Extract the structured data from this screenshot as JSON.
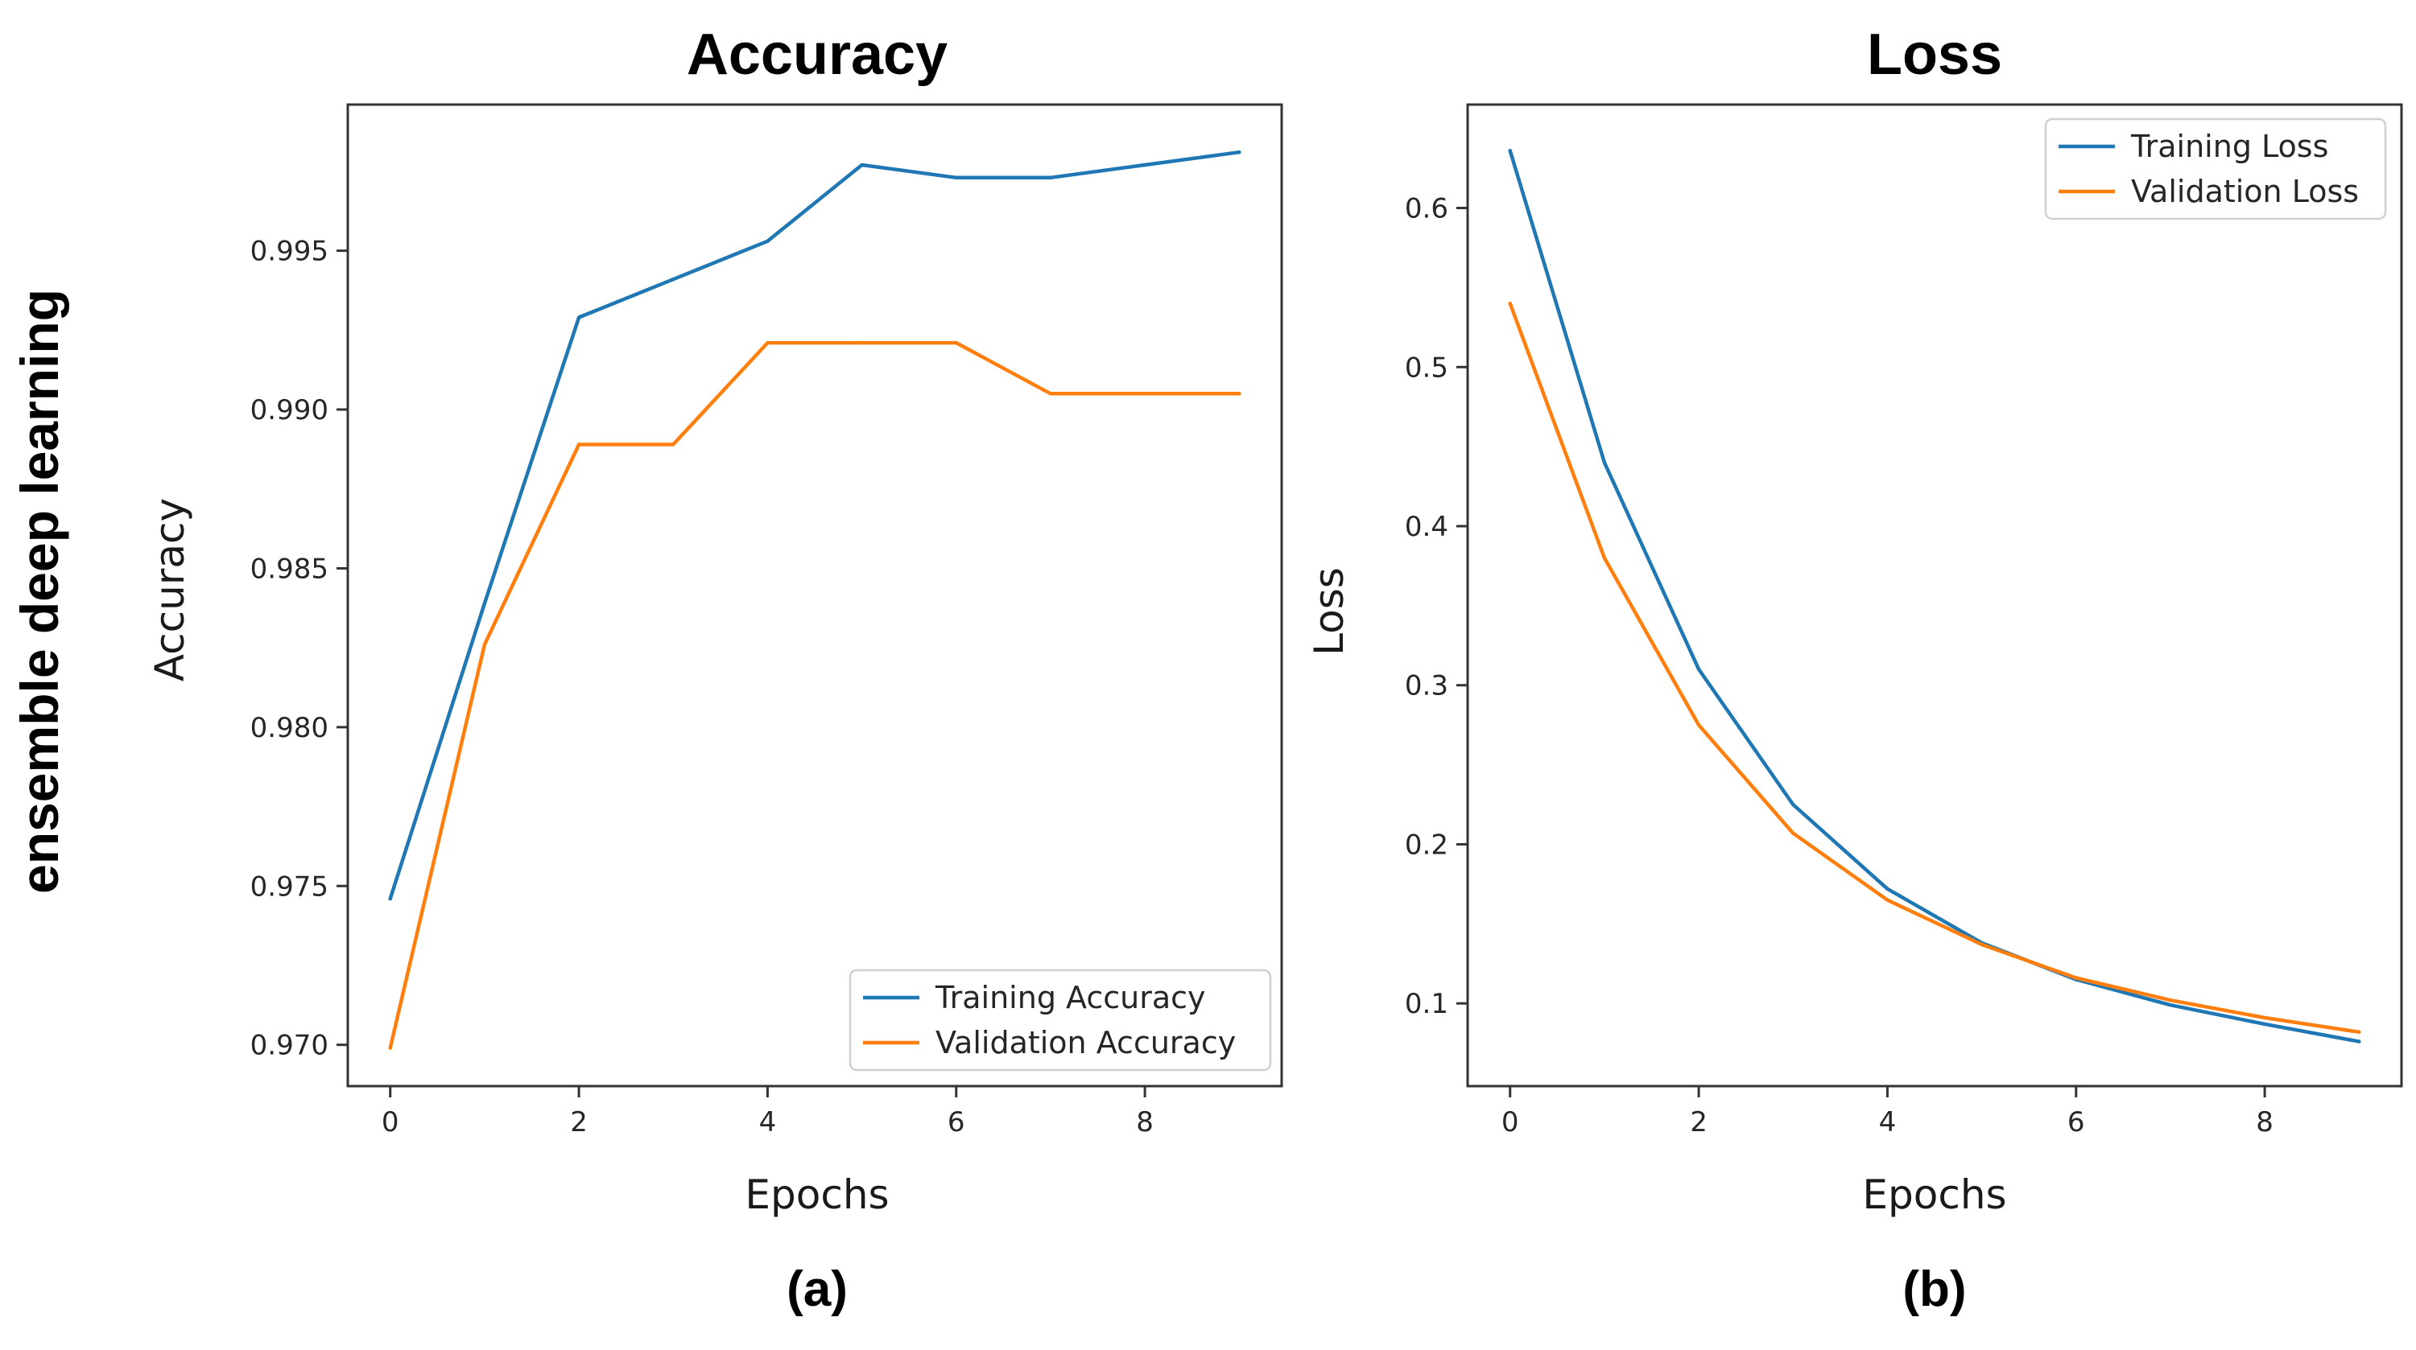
{
  "side_label": "ensemble deep learning",
  "chart_data": [
    {
      "id": "accuracy",
      "type": "line",
      "title": "Accuracy",
      "xlabel": "Epochs",
      "ylabel": "Accuracy",
      "panel_label": "(a)",
      "x": [
        0,
        1,
        2,
        3,
        4,
        5,
        6,
        7,
        8,
        9
      ],
      "xlim": [
        -0.45,
        9.45
      ],
      "ylim": [
        0.9687,
        0.9996
      ],
      "xticks": [
        0,
        2,
        4,
        6,
        8
      ],
      "xtick_labels": [
        "0",
        "2",
        "4",
        "6",
        "8"
      ],
      "yticks": [
        0.97,
        0.975,
        0.98,
        0.985,
        0.99,
        0.995
      ],
      "ytick_labels": [
        "0.970",
        "0.975",
        "0.980",
        "0.985",
        "0.990",
        "0.995"
      ],
      "legend_position": "lower-right",
      "grid": false,
      "series": [
        {
          "name": "Training Accuracy",
          "color": "#1f77b4",
          "values": [
            0.9746,
            0.9839,
            0.9929,
            0.9941,
            0.9953,
            0.9977,
            0.9973,
            0.9973,
            0.9977,
            0.9981
          ]
        },
        {
          "name": "Validation Accuracy",
          "color": "#ff7f0e",
          "values": [
            0.9699,
            0.9826,
            0.9889,
            0.9889,
            0.9921,
            0.9921,
            0.9921,
            0.9905,
            0.9905,
            0.9905
          ]
        }
      ]
    },
    {
      "id": "loss",
      "type": "line",
      "title": "Loss",
      "xlabel": "Epochs",
      "ylabel": "Loss",
      "panel_label": "(b)",
      "x": [
        0,
        1,
        2,
        3,
        4,
        5,
        6,
        7,
        8,
        9
      ],
      "xlim": [
        -0.45,
        9.45
      ],
      "ylim": [
        0.048,
        0.665
      ],
      "xticks": [
        0,
        2,
        4,
        6,
        8
      ],
      "xtick_labels": [
        "0",
        "2",
        "4",
        "6",
        "8"
      ],
      "yticks": [
        0.1,
        0.2,
        0.3,
        0.4,
        0.5,
        0.6
      ],
      "ytick_labels": [
        "0.1",
        "0.2",
        "0.3",
        "0.4",
        "0.5",
        "0.6"
      ],
      "legend_position": "upper-right",
      "grid": false,
      "series": [
        {
          "name": "Training Loss",
          "color": "#1f77b4",
          "values": [
            0.636,
            0.44,
            0.31,
            0.225,
            0.172,
            0.138,
            0.115,
            0.099,
            0.087,
            0.076
          ]
        },
        {
          "name": "Validation Loss",
          "color": "#ff7f0e",
          "values": [
            0.54,
            0.38,
            0.275,
            0.207,
            0.165,
            0.137,
            0.116,
            0.102,
            0.091,
            0.082
          ]
        }
      ]
    }
  ]
}
